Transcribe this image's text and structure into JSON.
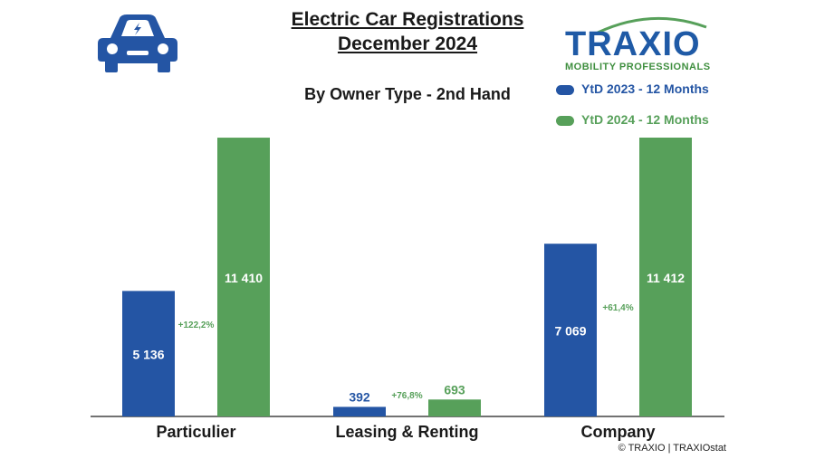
{
  "header": {
    "title_line1": "Electric Car Registrations",
    "title_line2": "December 2024",
    "subtitle": "By Owner Type - 2nd Hand"
  },
  "logo": {
    "word": "TRAXIO",
    "tagline": "MOBILITY PROFESSIONALS"
  },
  "icons": {
    "car": "electric-car-icon"
  },
  "footer": {
    "copyright": "© TRAXIO | TRAXIOstat"
  },
  "colors": {
    "blue": "#2455a4",
    "green": "#57a05a",
    "growth_text": "#57a05a"
  },
  "chart_data": {
    "type": "bar",
    "categories": [
      "Particulier",
      "Leasing & Renting",
      "Company"
    ],
    "series": [
      {
        "name": "YtD 2023 - 12 Months",
        "values": [
          5136,
          392,
          7069
        ],
        "labels": [
          "5 136",
          "392",
          "7 069"
        ]
      },
      {
        "name": "YtD 2024 - 12 Months",
        "values": [
          11410,
          693,
          11412
        ],
        "labels": [
          "11 410",
          "693",
          "11 412"
        ]
      }
    ],
    "growth_labels": [
      "+122,2%",
      "+76,8%",
      "+61,4%"
    ],
    "ylim": [
      0,
      11412
    ],
    "legend_position": "top-right",
    "grid": false
  }
}
